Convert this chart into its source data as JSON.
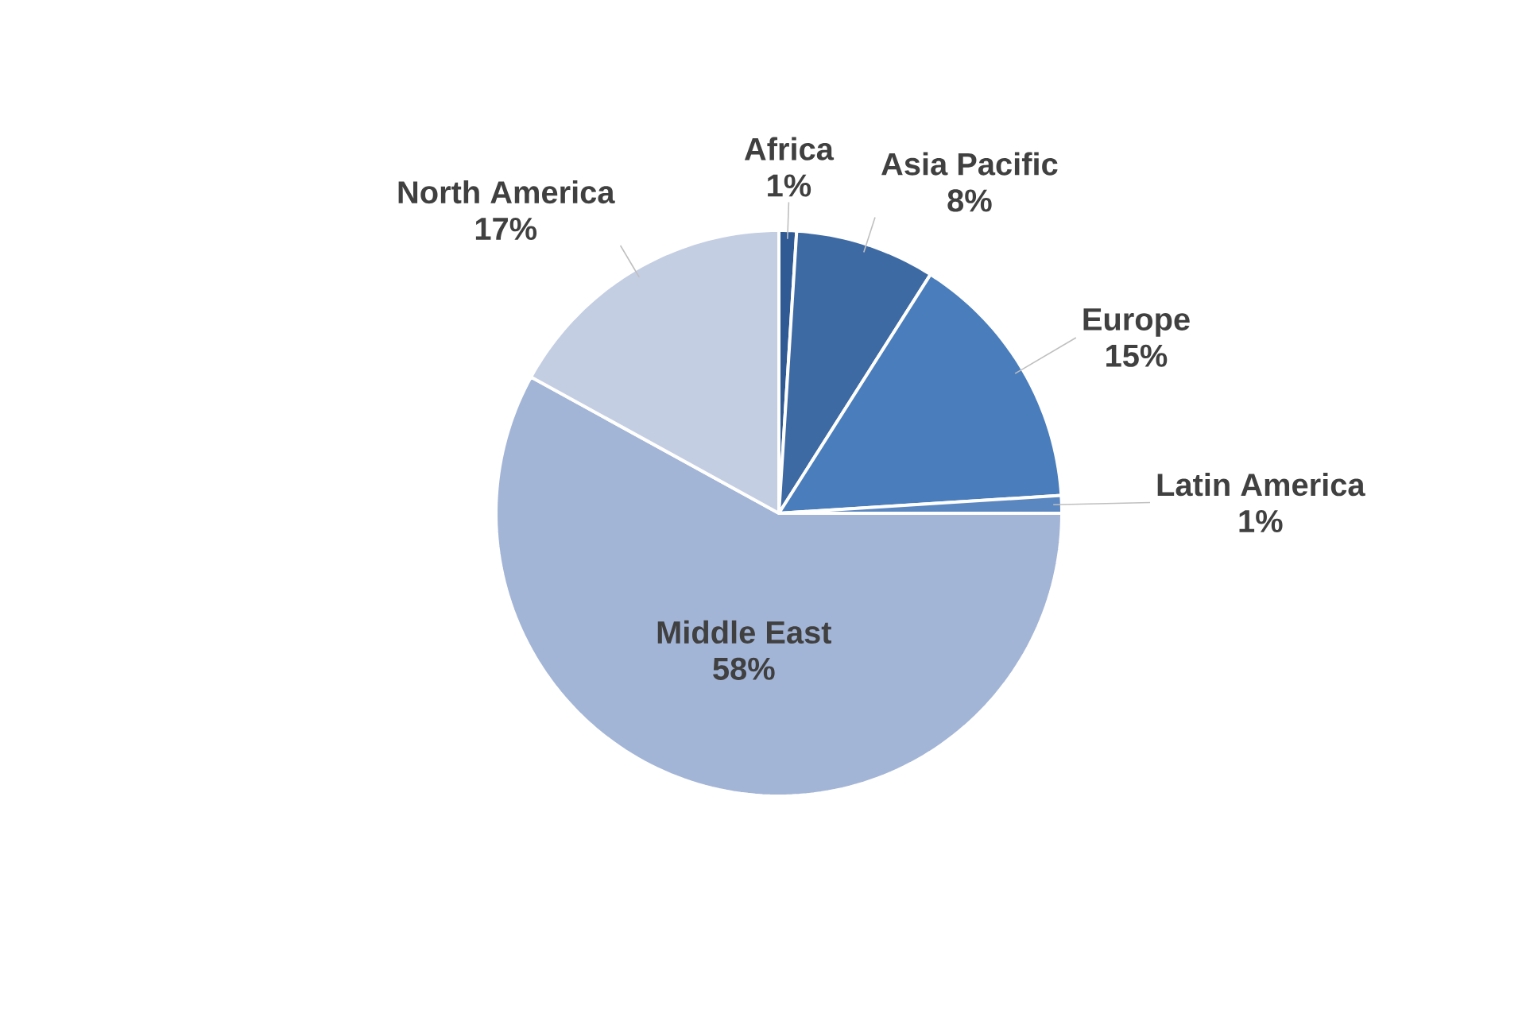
{
  "chart_data": {
    "type": "pie",
    "categories": [
      "Africa",
      "Asia Pacific",
      "Europe",
      "Latin America",
      "Middle East",
      "North America"
    ],
    "values": [
      1,
      8,
      15,
      1,
      58,
      17
    ],
    "value_labels": [
      "1%",
      "8%",
      "15%",
      "1%",
      "58%",
      "17%"
    ],
    "colors": [
      "#2f5a94",
      "#3e6aa4",
      "#4a7dbb",
      "#5b87c0",
      "#a3b5d6",
      "#c4cee3"
    ]
  }
}
